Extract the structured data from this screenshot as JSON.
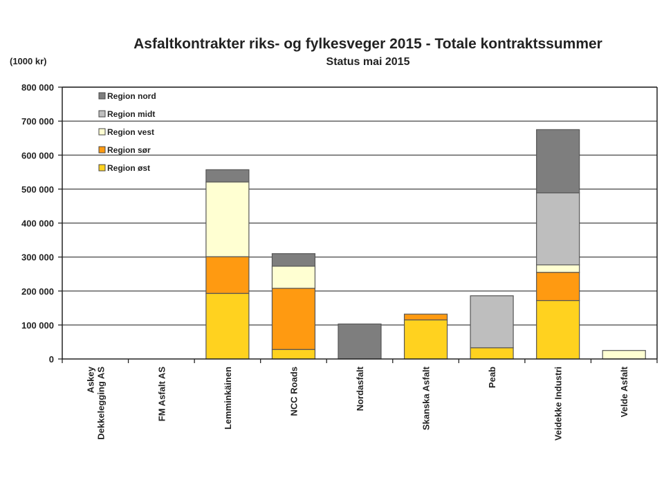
{
  "chart_data": {
    "type": "bar",
    "stacked": true,
    "title": "Asfaltkontrakter riks- og fylkesveger 2015 - Totale kontraktssummer",
    "subtitle": "Status mai  2015",
    "unit_label": "(1000 kr)",
    "ylim": [
      0,
      800000
    ],
    "yticks": [
      "0",
      "100 000",
      "200 000",
      "300 000",
      "400 000",
      "500 000",
      "600 000",
      "700 000",
      "800 000"
    ],
    "ytick_values": [
      0,
      100000,
      200000,
      300000,
      400000,
      500000,
      600000,
      700000,
      800000
    ],
    "grid": true,
    "legend_position": "top-left",
    "categories": [
      "Askey Dekkelegging AS",
      "FM Asfalt AS",
      "Lemminkäinen",
      "NCC Roads",
      "Nordasfalt",
      "Skanska Asfalt",
      "Peab",
      "Veidekke Industri",
      "Velde Asfalt"
    ],
    "category_lines": [
      [
        "Askey",
        "Dekkelegging AS"
      ],
      [
        "FM Asfalt AS"
      ],
      [
        "Lemminkäinen"
      ],
      [
        "NCC Roads"
      ],
      [
        "Nordasfalt"
      ],
      [
        "Skanska Asfalt"
      ],
      [
        "Peab"
      ],
      [
        "Veidekke Industri"
      ],
      [
        "Velde Asfalt"
      ]
    ],
    "series": [
      {
        "name": "Region øst",
        "color": "#FFD21F",
        "values": [
          0,
          0,
          193000,
          28000,
          0,
          115000,
          33000,
          172000,
          0
        ]
      },
      {
        "name": "Region sør",
        "color": "#FF9A11",
        "values": [
          0,
          0,
          108000,
          180000,
          0,
          17000,
          0,
          83000,
          0
        ]
      },
      {
        "name": "Region vest",
        "color": "#FFFFD2",
        "values": [
          0,
          0,
          220000,
          65000,
          0,
          0,
          0,
          22000,
          25000
        ]
      },
      {
        "name": "Region midt",
        "color": "#BEBEBE",
        "values": [
          0,
          0,
          0,
          0,
          0,
          0,
          153000,
          212000,
          0
        ]
      },
      {
        "name": "Region nord",
        "color": "#7E7E7E",
        "values": [
          0,
          0,
          36000,
          37000,
          103000,
          0,
          0,
          186000,
          0
        ]
      }
    ],
    "legend_order": [
      "Region nord",
      "Region midt",
      "Region vest",
      "Region sør",
      "Region øst"
    ]
  }
}
